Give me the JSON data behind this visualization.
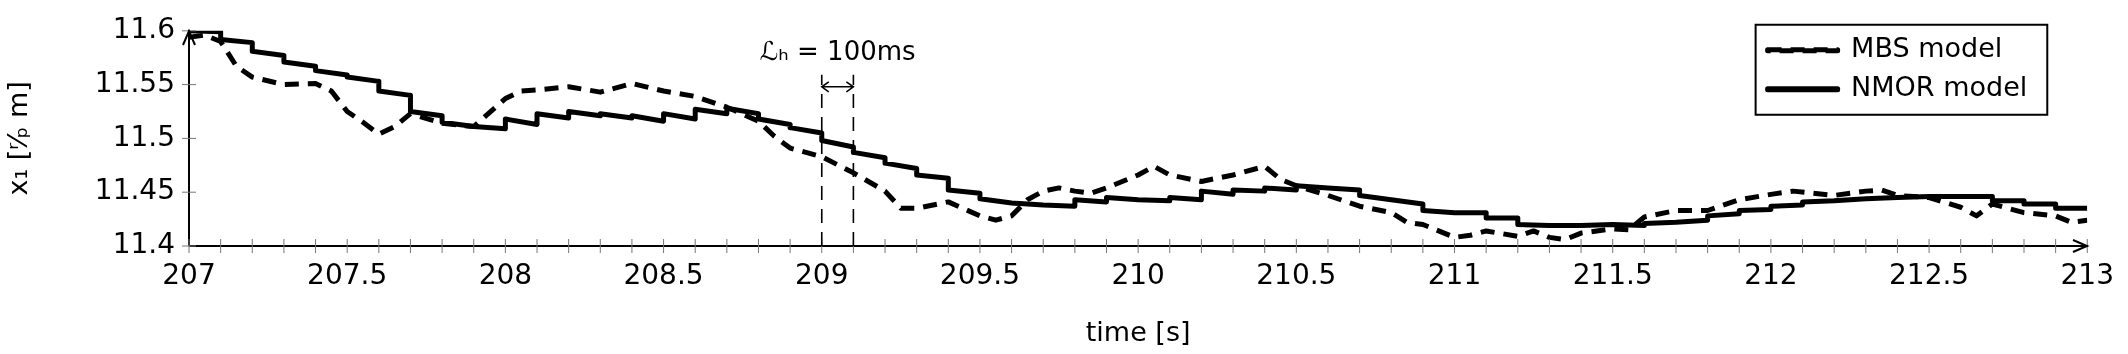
{
  "chart_data": {
    "type": "line",
    "xlabel": "time [s]",
    "ylabel": "x₁ [ʳ⁄ₚ m]",
    "xlim": [
      207,
      213
    ],
    "ylim": [
      11.4,
      11.6
    ],
    "xticks": [
      207,
      {
        "value": 207.1,
        "label": null
      },
      {
        "value": 207.2,
        "label": null
      },
      {
        "value": 207.3,
        "label": null
      },
      {
        "value": 207.4,
        "label": null
      },
      207.5,
      {
        "value": 207.6,
        "label": null
      },
      {
        "value": 207.7,
        "label": null
      },
      {
        "value": 207.8,
        "label": null
      },
      {
        "value": 207.9,
        "label": null
      },
      208,
      {
        "value": 208.1,
        "label": null
      },
      {
        "value": 208.2,
        "label": null
      },
      {
        "value": 208.3,
        "label": null
      },
      {
        "value": 208.4,
        "label": null
      },
      208.5,
      {
        "value": 208.6,
        "label": null
      },
      {
        "value": 208.7,
        "label": null
      },
      {
        "value": 208.8,
        "label": null
      },
      {
        "value": 208.9,
        "label": null
      },
      209,
      {
        "value": 209.1,
        "label": null
      },
      {
        "value": 209.2,
        "label": null
      },
      {
        "value": 209.3,
        "label": null
      },
      {
        "value": 209.4,
        "label": null
      },
      209.5,
      {
        "value": 209.6,
        "label": null
      },
      {
        "value": 209.7,
        "label": null
      },
      {
        "value": 209.8,
        "label": null
      },
      {
        "value": 209.9,
        "label": null
      },
      210,
      {
        "value": 210.1,
        "label": null
      },
      {
        "value": 210.2,
        "label": null
      },
      {
        "value": 210.3,
        "label": null
      },
      {
        "value": 210.4,
        "label": null
      },
      210.5,
      {
        "value": 210.6,
        "label": null
      },
      {
        "value": 210.7,
        "label": null
      },
      {
        "value": 210.8,
        "label": null
      },
      {
        "value": 210.9,
        "label": null
      },
      211,
      {
        "value": 211.1,
        "label": null
      },
      {
        "value": 211.2,
        "label": null
      },
      {
        "value": 211.3,
        "label": null
      },
      {
        "value": 211.4,
        "label": null
      },
      211.5,
      {
        "value": 211.6,
        "label": null
      },
      {
        "value": 211.7,
        "label": null
      },
      {
        "value": 211.8,
        "label": null
      },
      {
        "value": 211.9,
        "label": null
      },
      212,
      {
        "value": 212.1,
        "label": null
      },
      {
        "value": 212.2,
        "label": null
      },
      {
        "value": 212.3,
        "label": null
      },
      {
        "value": 212.4,
        "label": null
      },
      212.5,
      {
        "value": 212.6,
        "label": null
      },
      {
        "value": 212.7,
        "label": null
      },
      {
        "value": 212.8,
        "label": null
      },
      {
        "value": 212.9,
        "label": null
      },
      213
    ],
    "yticks": [
      11.4,
      11.45,
      11.5,
      11.55,
      11.6
    ],
    "grid": false,
    "legend": "top right",
    "marker": "none",
    "ref_lines": [
      {
        "axis": "x",
        "value": 209,
        "line_style": "dashed"
      },
      {
        "axis": "x",
        "value": 209.1,
        "line_style": "dashed"
      }
    ],
    "annotations": [
      "ℒₕ = 100ms"
    ],
    "series": [
      {
        "name": "MBS model",
        "color": "#000000",
        "line_style": "dashed",
        "x": [
          207,
          207.05,
          207.1,
          207.15,
          207.2,
          207.3,
          207.4,
          207.45,
          207.5,
          207.55,
          207.6,
          207.65,
          207.7,
          207.8,
          207.9,
          208,
          208.05,
          208.1,
          208.2,
          208.3,
          208.4,
          208.5,
          208.6,
          208.7,
          208.8,
          208.85,
          208.9,
          209,
          209.1,
          209.2,
          209.25,
          209.3,
          209.4,
          209.5,
          209.55,
          209.6,
          209.65,
          209.7,
          209.75,
          209.8,
          209.85,
          209.9,
          210,
          210.05,
          210.1,
          210.2,
          210.3,
          210.4,
          210.45,
          210.5,
          210.6,
          210.7,
          210.8,
          210.85,
          210.9,
          211,
          211.05,
          211.1,
          211.2,
          211.25,
          211.3,
          211.35,
          211.4,
          211.5,
          211.55,
          211.6,
          211.7,
          211.8,
          211.9,
          212,
          212.07,
          212.2,
          212.3,
          212.35,
          212.4,
          212.5,
          212.6,
          212.65,
          212.7,
          212.8,
          212.9,
          212.95,
          213
        ],
        "values": [
          11.594,
          11.596,
          11.59,
          11.567,
          11.557,
          11.55,
          11.551,
          11.544,
          11.525,
          11.515,
          11.504,
          11.511,
          11.523,
          11.514,
          11.511,
          11.537,
          11.544,
          11.545,
          11.548,
          11.543,
          11.551,
          11.544,
          11.539,
          11.529,
          11.516,
          11.502,
          11.491,
          11.483,
          11.468,
          11.451,
          11.435,
          11.435,
          11.441,
          11.428,
          11.424,
          11.428,
          11.443,
          11.451,
          11.454,
          11.451,
          11.449,
          11.454,
          11.466,
          11.474,
          11.466,
          11.46,
          11.466,
          11.474,
          11.462,
          11.456,
          11.447,
          11.437,
          11.431,
          11.422,
          11.42,
          11.408,
          11.41,
          11.414,
          11.409,
          11.414,
          11.408,
          11.406,
          11.412,
          11.416,
          11.415,
          11.427,
          11.433,
          11.433,
          11.443,
          11.448,
          11.451,
          11.447,
          11.451,
          11.452,
          11.447,
          11.445,
          11.436,
          11.428,
          11.439,
          11.431,
          11.428,
          11.422,
          11.424
        ]
      },
      {
        "name": "NMOR model",
        "color": "#000000",
        "line_style": "solid",
        "x": [
          207,
          207.1,
          207.1,
          207.2,
          207.2,
          207.3,
          207.3,
          207.4,
          207.4,
          207.5,
          207.5,
          207.6,
          207.6,
          207.7,
          207.7,
          207.8,
          207.8,
          207.9,
          207.9,
          208,
          208,
          208.1,
          208.1,
          208.2,
          208.2,
          208.3,
          208.3,
          208.4,
          208.4,
          208.5,
          208.5,
          208.6,
          208.6,
          208.7,
          208.7,
          208.8,
          208.8,
          208.9,
          208.9,
          209,
          209,
          209.1,
          209.1,
          209.2,
          209.2,
          209.3,
          209.3,
          209.4,
          209.4,
          209.5,
          209.5,
          209.6,
          209.7,
          209.8,
          209.8,
          209.9,
          209.9,
          210,
          210.1,
          210.1,
          210.2,
          210.2,
          210.3,
          210.3,
          210.4,
          210.4,
          210.5,
          210.5,
          210.6,
          210.7,
          210.7,
          210.8,
          210.9,
          210.9,
          211,
          211.1,
          211.1,
          211.2,
          211.2,
          211.3,
          211.4,
          211.5,
          211.6,
          211.6,
          211.7,
          211.8,
          211.8,
          211.9,
          211.9,
          212,
          212,
          212.1,
          212.1,
          212.2,
          212.3,
          212.4,
          212.5,
          212.6,
          212.7,
          212.7,
          212.8,
          212.8,
          212.9,
          212.9,
          213
        ],
        "values": [
          11.6,
          11.599,
          11.592,
          11.589,
          11.581,
          11.577,
          11.571,
          11.567,
          11.563,
          11.559,
          11.557,
          11.553,
          11.544,
          11.54,
          11.525,
          11.521,
          11.515,
          11.511,
          11.511,
          11.509,
          11.518,
          11.513,
          11.523,
          11.519,
          11.525,
          11.521,
          11.523,
          11.519,
          11.521,
          11.516,
          11.523,
          11.518,
          11.527,
          11.523,
          11.528,
          11.523,
          11.518,
          11.513,
          11.51,
          11.505,
          11.498,
          11.492,
          11.487,
          11.482,
          11.477,
          11.472,
          11.466,
          11.463,
          11.452,
          11.449,
          11.444,
          11.44,
          11.438,
          11.437,
          11.443,
          11.441,
          11.445,
          11.443,
          11.442,
          11.445,
          11.443,
          11.451,
          11.448,
          11.452,
          11.451,
          11.454,
          11.452,
          11.456,
          11.454,
          11.452,
          11.447,
          11.443,
          11.439,
          11.433,
          11.431,
          11.431,
          11.426,
          11.426,
          11.42,
          11.419,
          11.419,
          11.42,
          11.419,
          11.421,
          11.422,
          11.424,
          11.428,
          11.43,
          11.433,
          11.434,
          11.437,
          11.438,
          11.441,
          11.442,
          11.444,
          11.445,
          11.446,
          11.446,
          11.446,
          11.442,
          11.442,
          11.439,
          11.439,
          11.435,
          11.435
        ]
      }
    ]
  }
}
